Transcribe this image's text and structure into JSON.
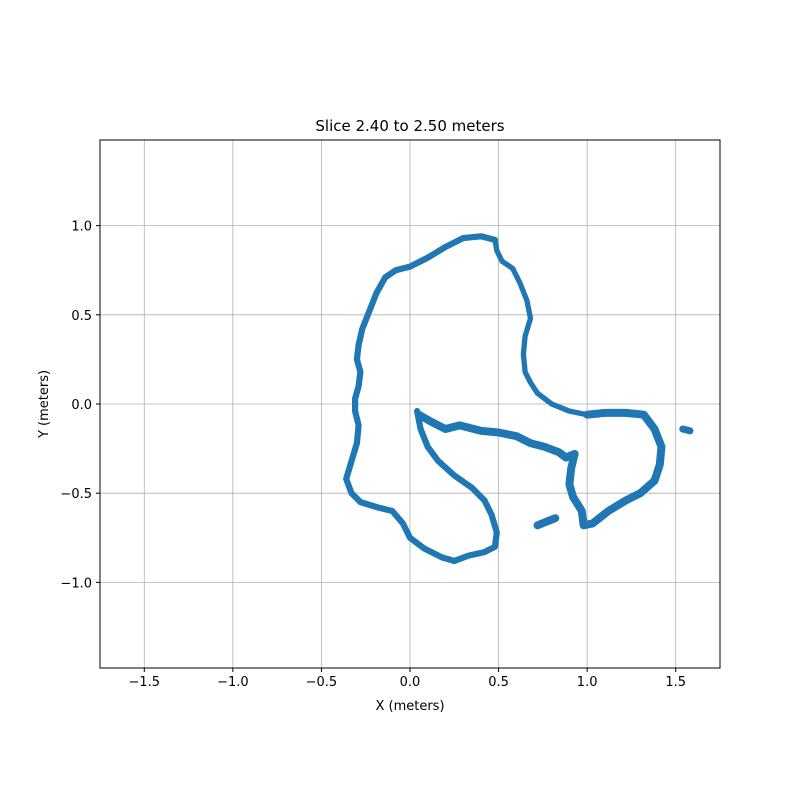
{
  "chart_data": {
    "type": "scatter",
    "title": "Slice 2.40 to 2.50 meters",
    "xlabel": "X (meters)",
    "ylabel": "Y (meters)",
    "xlim": [
      -1.75,
      1.75
    ],
    "ylim": [
      -1.48,
      1.48
    ],
    "grid": true,
    "marker_color": "#1f77b4",
    "x_ticks": [
      -1.5,
      -1.0,
      -0.5,
      0.0,
      0.5,
      1.0,
      1.5
    ],
    "x_tick_labels": [
      "−1.5",
      "−1.0",
      "−0.5",
      "0.0",
      "0.5",
      "1.0",
      "1.5"
    ],
    "y_ticks": [
      1.0,
      0.5,
      0.0,
      -0.5,
      -1.0
    ],
    "y_tick_labels": [
      "1.0",
      "0.5",
      "0.0",
      "−0.5",
      "−1.0"
    ],
    "series": [
      {
        "segments": [
          {
            "width": 0.035,
            "points": [
              [
                0.48,
                0.92
              ],
              [
                0.4,
                0.94
              ],
              [
                0.3,
                0.93
              ],
              [
                0.2,
                0.88
              ],
              [
                0.1,
                0.82
              ],
              [
                0.0,
                0.77
              ],
              [
                -0.08,
                0.75
              ],
              [
                -0.14,
                0.71
              ],
              [
                -0.19,
                0.62
              ],
              [
                -0.23,
                0.52
              ],
              [
                -0.27,
                0.42
              ],
              [
                -0.29,
                0.33
              ],
              [
                -0.3,
                0.25
              ],
              [
                -0.28,
                0.18
              ],
              [
                -0.29,
                0.1
              ],
              [
                -0.31,
                0.03
              ],
              [
                -0.31,
                -0.04
              ],
              [
                -0.29,
                -0.12
              ],
              [
                -0.3,
                -0.22
              ],
              [
                -0.33,
                -0.32
              ],
              [
                -0.36,
                -0.42
              ],
              [
                -0.33,
                -0.5
              ],
              [
                -0.28,
                -0.55
              ],
              [
                -0.18,
                -0.58
              ],
              [
                -0.1,
                -0.6
              ],
              [
                -0.04,
                -0.67
              ],
              [
                0.0,
                -0.75
              ],
              [
                0.08,
                -0.81
              ],
              [
                0.18,
                -0.86
              ],
              [
                0.25,
                -0.88
              ],
              [
                0.33,
                -0.85
              ],
              [
                0.42,
                -0.83
              ],
              [
                0.48,
                -0.8
              ],
              [
                0.49,
                -0.72
              ],
              [
                0.46,
                -0.62
              ],
              [
                0.42,
                -0.54
              ],
              [
                0.35,
                -0.47
              ],
              [
                0.25,
                -0.4
              ],
              [
                0.16,
                -0.32
              ],
              [
                0.1,
                -0.24
              ],
              [
                0.06,
                -0.14
              ],
              [
                0.04,
                -0.04
              ]
            ]
          },
          {
            "width": 0.045,
            "points": [
              [
                0.05,
                -0.06
              ],
              [
                0.12,
                -0.1
              ],
              [
                0.2,
                -0.14
              ],
              [
                0.28,
                -0.12
              ],
              [
                0.4,
                -0.15
              ],
              [
                0.5,
                -0.16
              ],
              [
                0.6,
                -0.18
              ],
              [
                0.68,
                -0.22
              ],
              [
                0.76,
                -0.24
              ],
              [
                0.84,
                -0.27
              ],
              [
                0.88,
                -0.3
              ],
              [
                0.93,
                -0.28
              ],
              [
                0.91,
                -0.36
              ],
              [
                0.9,
                -0.45
              ],
              [
                0.92,
                -0.52
              ],
              [
                0.97,
                -0.6
              ],
              [
                0.98,
                -0.68
              ],
              [
                1.03,
                -0.67
              ],
              [
                1.12,
                -0.6
              ],
              [
                1.22,
                -0.54
              ],
              [
                1.3,
                -0.5
              ],
              [
                1.38,
                -0.43
              ],
              [
                1.41,
                -0.34
              ],
              [
                1.42,
                -0.24
              ],
              [
                1.38,
                -0.14
              ],
              [
                1.32,
                -0.06
              ],
              [
                1.22,
                -0.05
              ],
              [
                1.1,
                -0.05
              ],
              [
                1.0,
                -0.06
              ]
            ]
          },
          {
            "width": 0.03,
            "points": [
              [
                1.0,
                -0.06
              ],
              [
                0.9,
                -0.04
              ],
              [
                0.8,
                0.0
              ],
              [
                0.72,
                0.06
              ],
              [
                0.68,
                0.12
              ],
              [
                0.65,
                0.18
              ],
              [
                0.64,
                0.28
              ],
              [
                0.65,
                0.38
              ],
              [
                0.68,
                0.48
              ],
              [
                0.66,
                0.58
              ],
              [
                0.62,
                0.68
              ],
              [
                0.58,
                0.76
              ],
              [
                0.52,
                0.8
              ],
              [
                0.49,
                0.86
              ],
              [
                0.48,
                0.92
              ]
            ]
          },
          {
            "width": 0.045,
            "points": [
              [
                0.72,
                -0.68
              ],
              [
                0.77,
                -0.66
              ],
              [
                0.82,
                -0.64
              ]
            ]
          },
          {
            "width": 0.04,
            "points": [
              [
                1.54,
                -0.14
              ],
              [
                1.58,
                -0.15
              ]
            ]
          }
        ]
      }
    ]
  }
}
